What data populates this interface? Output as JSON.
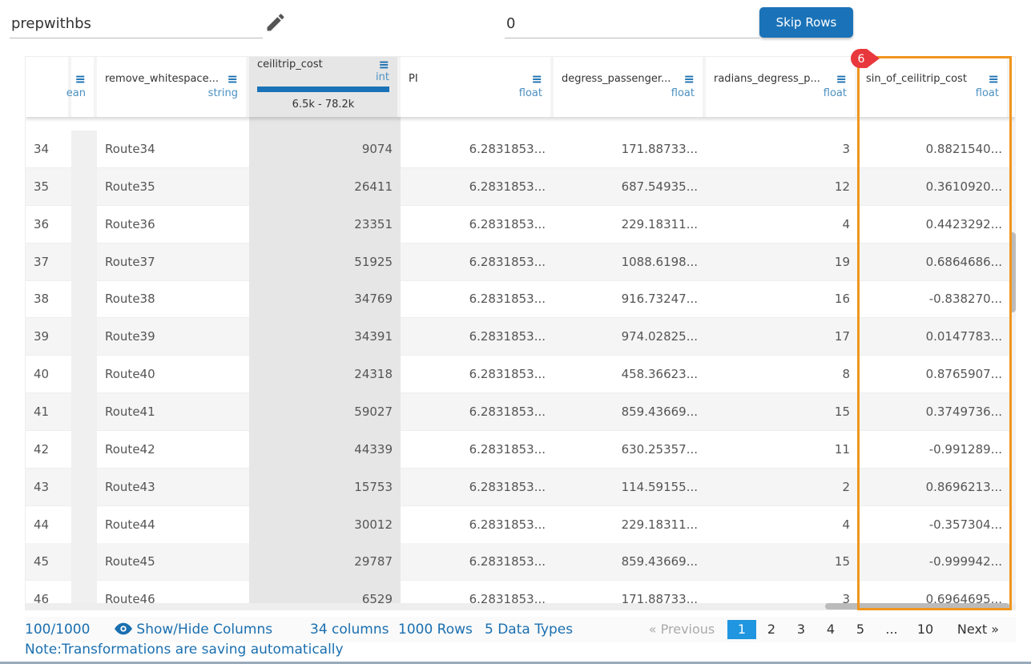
{
  "top": {
    "name_value": "prepwithbs",
    "skip_value": "0",
    "skip_button": "Skip Rows"
  },
  "columns": [
    {
      "name": "",
      "type": ""
    },
    {
      "name": "",
      "type": "ean"
    },
    {
      "name": "remove_whitespace...",
      "type": "string"
    },
    {
      "name": "ceilitrip_cost",
      "type": "int",
      "range": "6.5k - 78.2k",
      "selected": true
    },
    {
      "name": "PI",
      "type": "float"
    },
    {
      "name": "degress_passenger...",
      "type": "float"
    },
    {
      "name": "radians_degress_p...",
      "type": "float"
    },
    {
      "name": "sin_of_ceilitrip_cost",
      "type": "float"
    }
  ],
  "rows": [
    [
      "34",
      "Route34",
      "9074",
      "6.2831853...",
      "171.88733...",
      "3",
      "0.8821540..."
    ],
    [
      "35",
      "Route35",
      "26411",
      "6.2831853...",
      "687.54935...",
      "12",
      "0.3610920..."
    ],
    [
      "36",
      "Route36",
      "23351",
      "6.2831853...",
      "229.18311...",
      "4",
      "0.4423292..."
    ],
    [
      "37",
      "Route37",
      "51925",
      "6.2831853...",
      "1088.6198...",
      "19",
      "0.6864686..."
    ],
    [
      "38",
      "Route38",
      "34769",
      "6.2831853...",
      "916.73247...",
      "16",
      "-0.838270..."
    ],
    [
      "39",
      "Route39",
      "34391",
      "6.2831853...",
      "974.02825...",
      "17",
      "0.0147783..."
    ],
    [
      "40",
      "Route40",
      "24318",
      "6.2831853...",
      "458.36623...",
      "8",
      "0.8765907..."
    ],
    [
      "41",
      "Route41",
      "59027",
      "6.2831853...",
      "859.43669...",
      "15",
      "0.3749736..."
    ],
    [
      "42",
      "Route42",
      "44339",
      "6.2831853...",
      "630.25357...",
      "11",
      "-0.991289..."
    ],
    [
      "43",
      "Route43",
      "15753",
      "6.2831853...",
      "114.59155...",
      "2",
      "0.8696213..."
    ],
    [
      "44",
      "Route44",
      "30012",
      "6.2831853...",
      "229.18311...",
      "4",
      "-0.357304..."
    ],
    [
      "45",
      "Route45",
      "29787",
      "6.2831853...",
      "859.43669...",
      "15",
      "-0.999942..."
    ],
    [
      "46",
      "Route46",
      "6529",
      "6.2831853...",
      "171.88733...",
      "3",
      "0.6964695..."
    ]
  ],
  "annotation": {
    "badge": "6",
    "highlight_color": "#f0961e"
  },
  "footer": {
    "count": "100/1000",
    "show_hide": "Show/Hide Columns",
    "columns": "34 columns",
    "rows": "1000 Rows",
    "types": "5 Data Types",
    "pagination": {
      "previous": "« Previous",
      "pages": [
        "1",
        "2",
        "3",
        "4",
        "5",
        "...",
        "10"
      ],
      "current": "1",
      "next": "Next »"
    }
  },
  "note": "Note:Transformations are saving automatically",
  "colors": {
    "accent": "#1a73b8",
    "active_page": "#2196e0"
  }
}
